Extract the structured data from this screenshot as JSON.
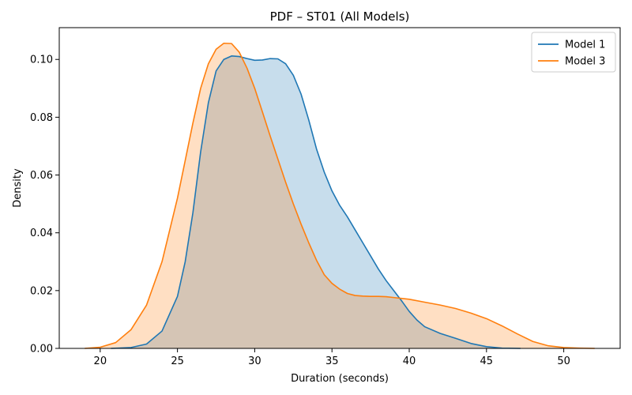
{
  "chart_data": {
    "type": "area",
    "title": "PDF – ST01 (All Models)",
    "xlabel": "Duration (seconds)",
    "ylabel": "Density",
    "xlim": [
      17.35,
      53.65
    ],
    "ylim": [
      0,
      0.111
    ],
    "xticks": [
      20,
      25,
      30,
      35,
      40,
      45,
      50
    ],
    "yticks": [
      0.0,
      0.02,
      0.04,
      0.06,
      0.08,
      0.1
    ],
    "xtick_labels": [
      "20",
      "25",
      "30",
      "35",
      "40",
      "45",
      "50"
    ],
    "ytick_labels": [
      "0.00",
      "0.02",
      "0.04",
      "0.06",
      "0.08",
      "0.10"
    ],
    "grid": false,
    "legend_position": "top-right",
    "series": [
      {
        "name": "Model 1",
        "color": "#1f77b4",
        "points": [
          [
            20.7,
            0.0
          ],
          [
            22.0,
            0.0003
          ],
          [
            23.0,
            0.0015
          ],
          [
            24.0,
            0.006
          ],
          [
            25.0,
            0.018
          ],
          [
            25.5,
            0.03
          ],
          [
            26.0,
            0.047
          ],
          [
            26.5,
            0.068
          ],
          [
            27.0,
            0.085
          ],
          [
            27.5,
            0.096
          ],
          [
            28.0,
            0.1
          ],
          [
            28.5,
            0.1012
          ],
          [
            29.0,
            0.101
          ],
          [
            29.5,
            0.1003
          ],
          [
            30.0,
            0.0997
          ],
          [
            30.5,
            0.0998
          ],
          [
            31.0,
            0.1003
          ],
          [
            31.5,
            0.1002
          ],
          [
            32.0,
            0.0985
          ],
          [
            32.5,
            0.0945
          ],
          [
            33.0,
            0.088
          ],
          [
            33.5,
            0.079
          ],
          [
            34.0,
            0.069
          ],
          [
            34.5,
            0.061
          ],
          [
            35.0,
            0.0545
          ],
          [
            35.5,
            0.0495
          ],
          [
            36.0,
            0.0455
          ],
          [
            36.5,
            0.041
          ],
          [
            37.0,
            0.0365
          ],
          [
            37.5,
            0.032
          ],
          [
            38.0,
            0.0275
          ],
          [
            38.5,
            0.0235
          ],
          [
            39.0,
            0.02
          ],
          [
            39.5,
            0.0165
          ],
          [
            40.0,
            0.0128
          ],
          [
            40.5,
            0.0098
          ],
          [
            41.0,
            0.0075
          ],
          [
            42.0,
            0.0052
          ],
          [
            43.0,
            0.0035
          ],
          [
            44.0,
            0.0017
          ],
          [
            45.0,
            0.0006
          ],
          [
            46.0,
            0.0001
          ],
          [
            47.2,
            0.0
          ]
        ]
      },
      {
        "name": "Model 3",
        "color": "#ff7f0e",
        "points": [
          [
            19.0,
            0.0
          ],
          [
            20.0,
            0.0004
          ],
          [
            21.0,
            0.002
          ],
          [
            22.0,
            0.0065
          ],
          [
            23.0,
            0.015
          ],
          [
            24.0,
            0.03
          ],
          [
            25.0,
            0.052
          ],
          [
            25.5,
            0.065
          ],
          [
            26.0,
            0.078
          ],
          [
            26.5,
            0.09
          ],
          [
            27.0,
            0.0985
          ],
          [
            27.5,
            0.1035
          ],
          [
            28.0,
            0.1056
          ],
          [
            28.5,
            0.1055
          ],
          [
            29.0,
            0.1025
          ],
          [
            29.5,
            0.097
          ],
          [
            30.0,
            0.09
          ],
          [
            30.5,
            0.0818
          ],
          [
            31.0,
            0.0735
          ],
          [
            31.5,
            0.0655
          ],
          [
            32.0,
            0.0575
          ],
          [
            32.5,
            0.05
          ],
          [
            33.0,
            0.043
          ],
          [
            33.5,
            0.0365
          ],
          [
            34.0,
            0.0305
          ],
          [
            34.5,
            0.0255
          ],
          [
            35.0,
            0.0225
          ],
          [
            35.5,
            0.0205
          ],
          [
            36.0,
            0.019
          ],
          [
            36.5,
            0.0183
          ],
          [
            37.0,
            0.0181
          ],
          [
            37.5,
            0.018
          ],
          [
            38.0,
            0.018
          ],
          [
            38.5,
            0.0179
          ],
          [
            39.0,
            0.0176
          ],
          [
            40.0,
            0.017
          ],
          [
            41.0,
            0.016
          ],
          [
            42.0,
            0.015
          ],
          [
            43.0,
            0.0138
          ],
          [
            44.0,
            0.0122
          ],
          [
            45.0,
            0.0103
          ],
          [
            46.0,
            0.0078
          ],
          [
            47.0,
            0.005
          ],
          [
            48.0,
            0.0024
          ],
          [
            49.0,
            0.0009
          ],
          [
            50.0,
            0.0003
          ],
          [
            51.0,
            0.0001
          ],
          [
            52.0,
            0.0
          ]
        ]
      }
    ]
  }
}
